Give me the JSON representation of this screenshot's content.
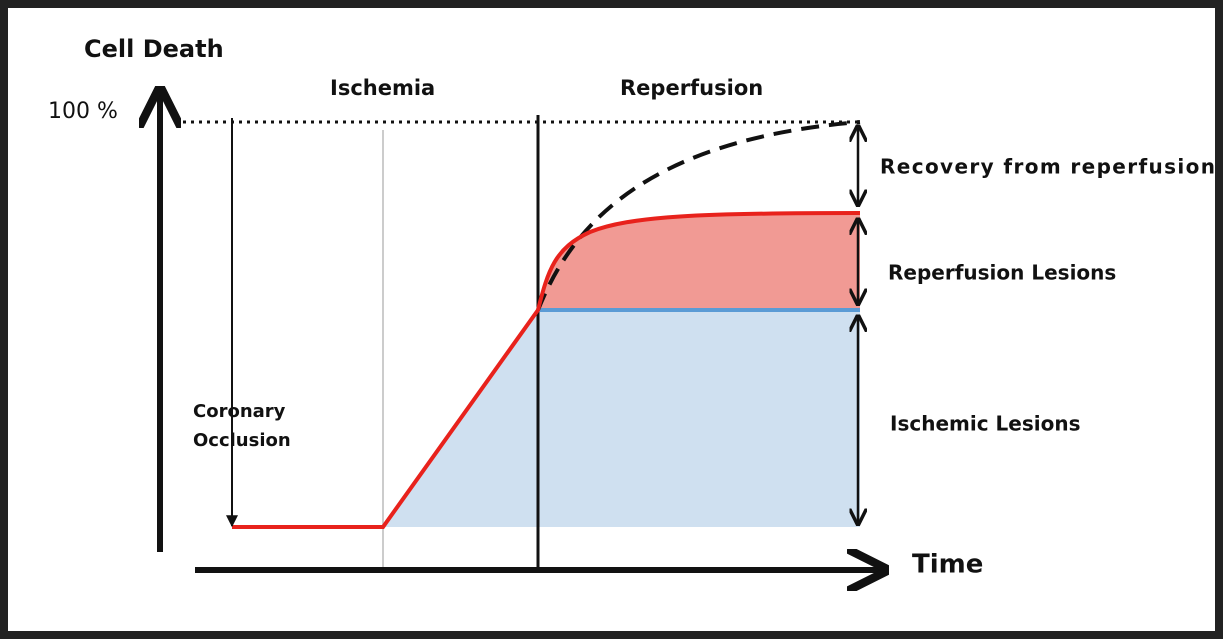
{
  "axes": {
    "y_label": "Cell Death",
    "y_max_label": "100 %",
    "x_label": "Time"
  },
  "phases": {
    "ischemia": "Ischemia",
    "reperfusion": "Reperfusion"
  },
  "event": {
    "lines": [
      "Coronary",
      "Occlusion"
    ]
  },
  "annotations": {
    "recovery": "Recovery from reperfusion",
    "reperfusion_lesions": "Reperfusion Lesions",
    "ischemic_lesions": "Ischemic Lesions"
  }
}
